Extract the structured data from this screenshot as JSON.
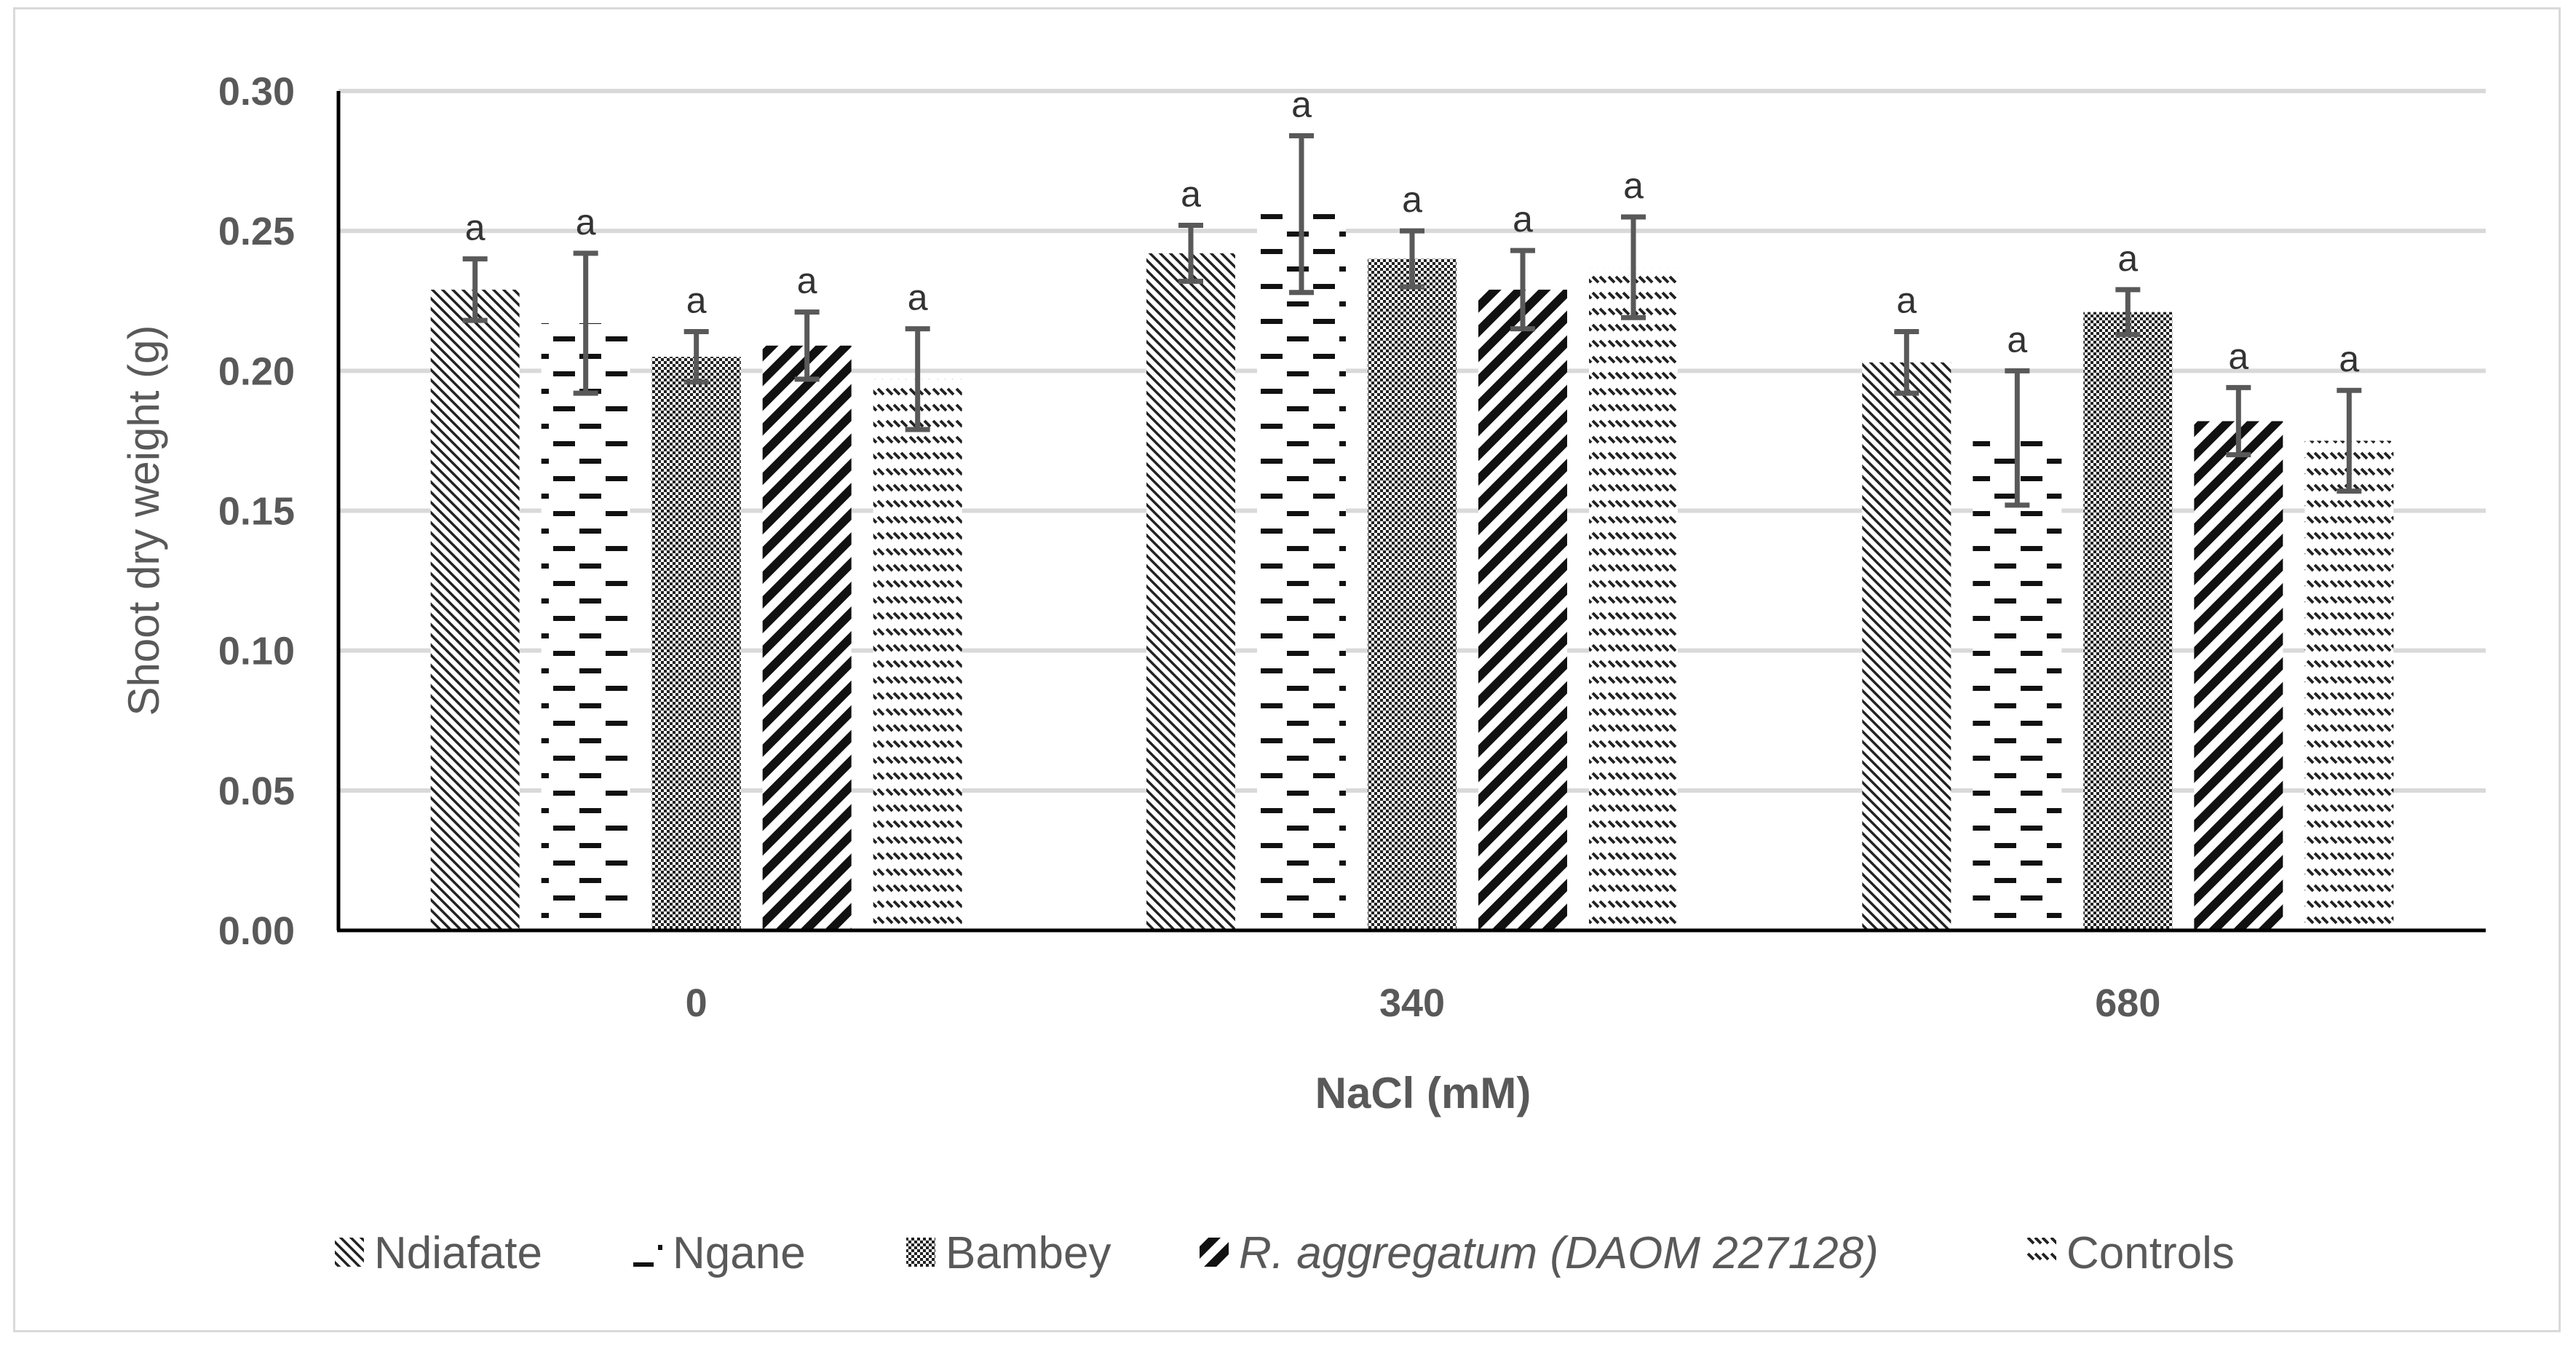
{
  "chart_data": {
    "type": "bar",
    "title": "",
    "xlabel": "NaCl (mM)",
    "ylabel": "Shoot dry weight (g)",
    "ylim": [
      0,
      0.3
    ],
    "yticks": [
      "0.00",
      "0.05",
      "0.10",
      "0.15",
      "0.20",
      "0.25",
      "0.30"
    ],
    "grid": true,
    "legend_position": "bottom",
    "categories": [
      "0",
      "340",
      "680"
    ],
    "series": [
      {
        "name": "Ndiafate",
        "italic": false,
        "pattern": "diag-thin",
        "values": [
          0.229,
          0.242,
          0.203
        ],
        "errors": [
          0.011,
          0.01,
          0.011
        ],
        "labels": [
          "a",
          "a",
          "a"
        ]
      },
      {
        "name": "Ngane",
        "italic": false,
        "pattern": "dashes",
        "values": [
          0.217,
          0.256,
          0.176
        ],
        "errors": [
          0.025,
          0.028,
          0.024
        ],
        "labels": [
          "a",
          "a",
          "a"
        ]
      },
      {
        "name": "Bambey",
        "italic": false,
        "pattern": "checker",
        "values": [
          0.205,
          0.24,
          0.221
        ],
        "errors": [
          0.009,
          0.01,
          0.008
        ],
        "labels": [
          "a",
          "a",
          "a"
        ]
      },
      {
        "name": "R. aggregatum (DAOM 227128)",
        "italic": true,
        "pattern": "diag-thick",
        "values": [
          0.209,
          0.229,
          0.182
        ],
        "errors": [
          0.012,
          0.014,
          0.012
        ],
        "labels": [
          "a",
          "a",
          "a"
        ]
      },
      {
        "name": "Controls",
        "italic": false,
        "pattern": "dash-diag",
        "values": [
          0.197,
          0.237,
          0.175
        ],
        "errors": [
          0.018,
          0.018,
          0.018
        ],
        "labels": [
          "a",
          "a",
          "a"
        ]
      }
    ]
  }
}
